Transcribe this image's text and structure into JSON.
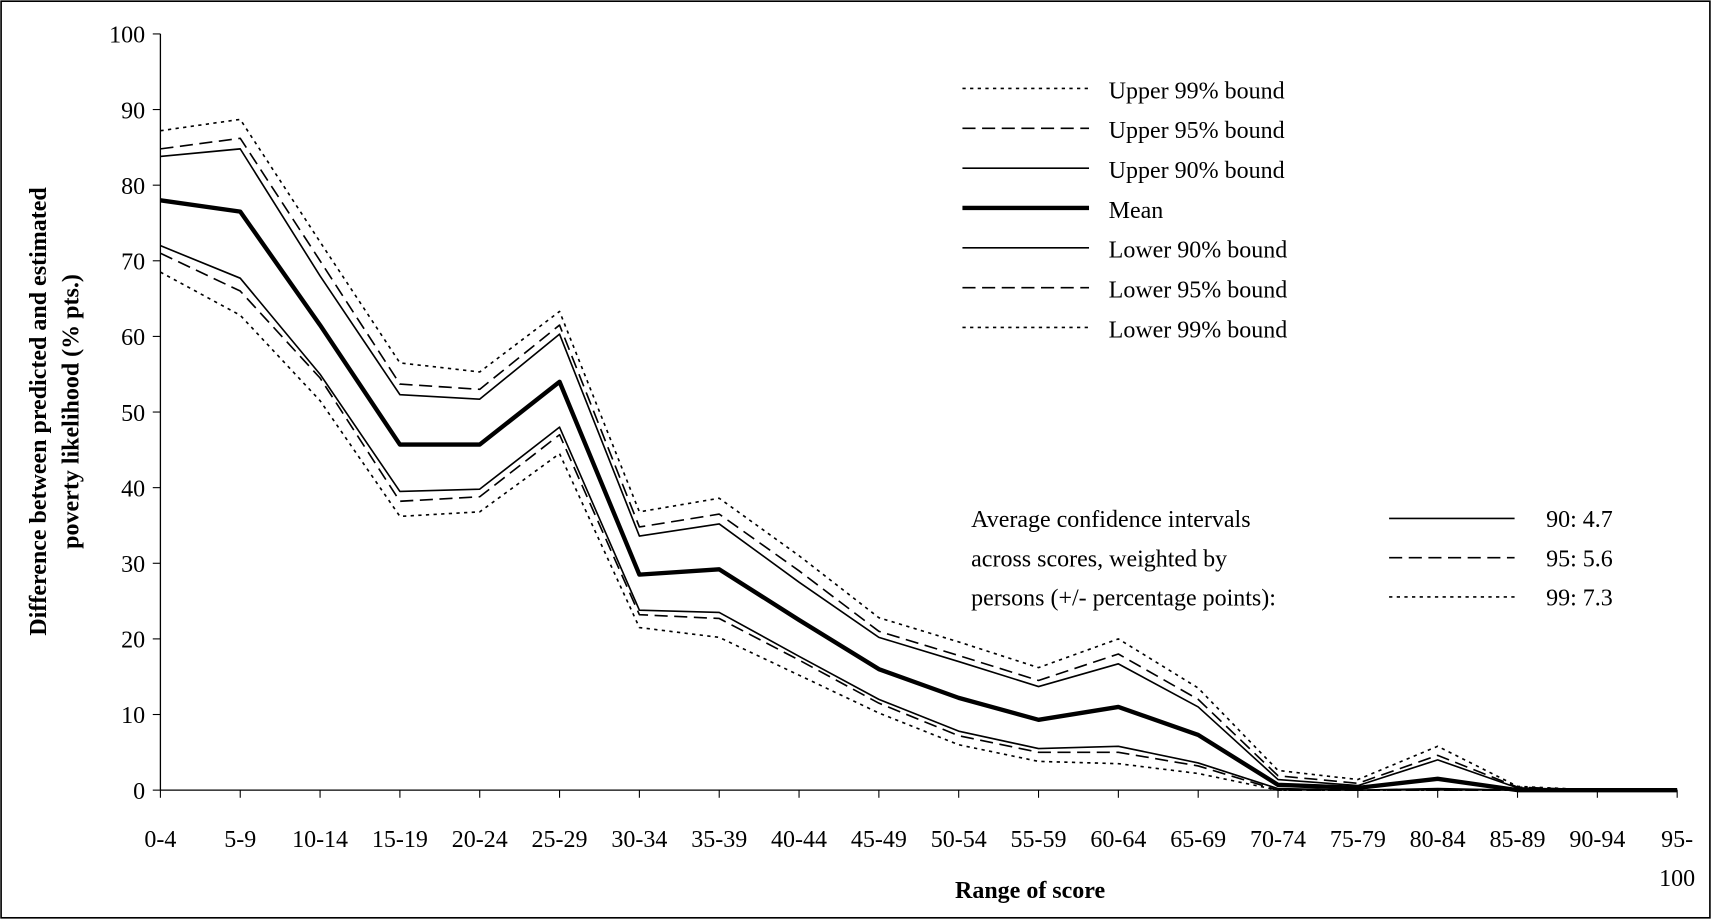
{
  "chart_data": {
    "type": "line",
    "y_label": [
      "Difference between predicted and estimated",
      "poverty likelihood (% pts.)"
    ],
    "x_label": "Range of score",
    "categories": [
      "0-4",
      "5-9",
      "10-14",
      "15-19",
      "20-24",
      "25-29",
      "30-34",
      "35-39",
      "40-44",
      "45-49",
      "50-54",
      "55-59",
      "60-64",
      "65-69",
      "70-74",
      "75-79",
      "80-84",
      "85-89",
      "90-94",
      "95-100"
    ],
    "ylim": [
      0,
      100
    ],
    "yticks": [
      0,
      10,
      20,
      30,
      40,
      50,
      60,
      70,
      80,
      90,
      100
    ],
    "series": [
      {
        "name": "Upper 99% bound",
        "color": "#000",
        "dash": "dotted",
        "width": 1.5,
        "values": [
          87.2,
          88.7,
          72.5,
          56.5,
          55.3,
          63.3,
          36.8,
          38.6,
          31,
          22.8,
          19.6,
          16.2,
          20,
          13.5,
          2.6,
          1.4,
          5.8,
          0.5,
          0,
          0
        ]
      },
      {
        "name": "Upper 95% bound",
        "color": "#000",
        "dash": "dashed",
        "width": 1.5,
        "values": [
          84.8,
          86.2,
          70,
          53.7,
          53,
          61.5,
          34.8,
          36.5,
          29,
          21,
          17.8,
          14.5,
          18,
          12,
          1.9,
          0.9,
          4.6,
          0.4,
          0,
          0
        ]
      },
      {
        "name": "Upper 90% bound",
        "color": "#000",
        "dash": "solid",
        "width": 1.5,
        "values": [
          83.8,
          84.8,
          68,
          52.3,
          51.7,
          60.3,
          33.6,
          35.2,
          27.5,
          20.2,
          17,
          13.7,
          16.7,
          11,
          1.4,
          0.6,
          4,
          0.3,
          0,
          0
        ]
      },
      {
        "name": "Mean",
        "color": "#000",
        "dash": "solid",
        "width": 4,
        "values": [
          78,
          76.5,
          61.5,
          45.7,
          45.7,
          54,
          28.5,
          29.2,
          22.5,
          16,
          12.2,
          9.3,
          11,
          7.3,
          0.7,
          0.3,
          1.5,
          0,
          0,
          0
        ]
      },
      {
        "name": "Lower 90% bound",
        "color": "#000",
        "dash": "solid",
        "width": 1.5,
        "values": [
          72,
          67.7,
          55,
          39.5,
          39.8,
          48,
          23.8,
          23.5,
          17.7,
          12,
          7.8,
          5.5,
          5.8,
          3.6,
          0.2,
          0,
          0.2,
          0,
          0,
          0
        ]
      },
      {
        "name": "Lower 95% bound",
        "color": "#000",
        "dash": "dashed",
        "width": 1.5,
        "values": [
          71,
          66,
          54.5,
          38.2,
          38.8,
          47,
          23.2,
          22.7,
          17.2,
          11.5,
          7.2,
          5,
          5,
          3.2,
          0,
          0,
          0,
          0,
          0,
          0
        ]
      },
      {
        "name": "Lower 99% bound",
        "color": "#000",
        "dash": "dotted",
        "width": 1.5,
        "values": [
          68.5,
          62.8,
          51.5,
          36.2,
          36.8,
          44.5,
          21.5,
          20.2,
          15.2,
          10.2,
          6,
          3.8,
          3.5,
          2.2,
          0,
          0,
          0,
          0,
          0,
          0
        ]
      }
    ],
    "annotation": [
      "Average confidence intervals",
      "across scores, weighted by",
      "persons (+/- percentage points):"
    ],
    "ci_legend": [
      {
        "label": "90: 4.7",
        "dash": "solid"
      },
      {
        "label": "95: 5.6",
        "dash": "dashed"
      },
      {
        "label": "99: 7.3",
        "dash": "dotted"
      }
    ]
  }
}
